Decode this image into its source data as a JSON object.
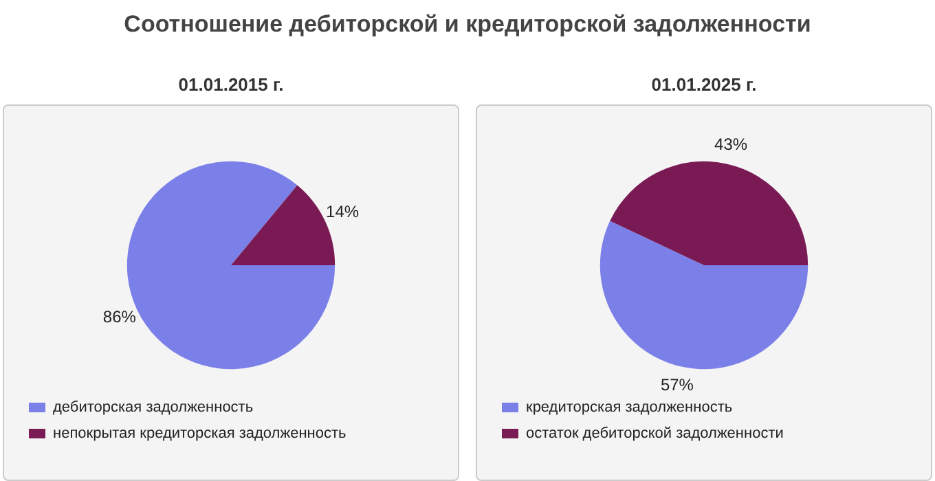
{
  "chart_data": [
    {
      "type": "pie",
      "title": "Соотношение дебиторской и кредиторской задолженности",
      "subtitle": "01.01.2015 г.",
      "categories": [
        "дебиторская задолженность",
        "непокрытая кредиторская задолженность"
      ],
      "values": [
        86,
        14
      ],
      "value_labels": [
        "86%",
        "14%"
      ],
      "colors": [
        "#7b80e9",
        "#7a1a55"
      ],
      "legend": "bottom"
    },
    {
      "type": "pie",
      "subtitle": "01.01.2025 г.",
      "categories": [
        "кредиторская задолженность",
        "остаток дебиторской задолженности"
      ],
      "values": [
        57,
        43
      ],
      "value_labels": [
        "57%",
        "43%"
      ],
      "colors": [
        "#7b80e9",
        "#7a1a55"
      ],
      "legend": "bottom"
    }
  ]
}
